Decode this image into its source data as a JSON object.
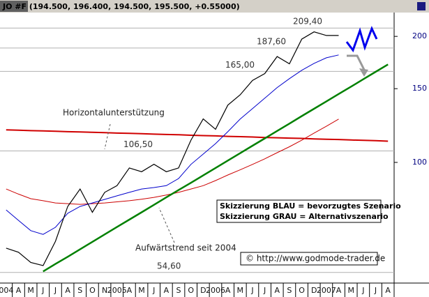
{
  "header": "JO #F (194.500, 196.400, 194.500, 195.500, +0.55000)",
  "chart_data": {
    "type": "line",
    "log_scale": true,
    "categories": [
      "004",
      "A",
      "M",
      "J",
      "J",
      "A",
      "S",
      "O",
      "N",
      "2005",
      "A",
      "M",
      "J",
      "A",
      "S",
      "O",
      "D",
      "2006",
      "A",
      "M",
      "J",
      "J",
      "A",
      "S",
      "O",
      "D",
      "2007",
      "A",
      "M",
      "J",
      "J",
      "A"
    ],
    "ylim": [
      51.5,
      228
    ],
    "yticks": [
      100,
      150,
      200
    ],
    "axis_color": "#000080",
    "series": [
      {
        "color": "#d00000",
        "width": 2,
        "values": [
          119.6,
          119.4,
          119.1,
          118.9,
          118.7,
          118.4,
          118.2,
          118.0,
          117.8,
          117.5,
          117.3,
          117.1,
          116.8,
          116.6,
          116.4,
          116.1,
          115.9,
          115.7,
          115.4,
          115.2,
          115.0,
          114.7,
          114.5,
          114.3,
          114.1,
          113.8,
          113.6,
          113.4,
          113.1,
          112.9,
          112.7,
          112.4
        ]
      },
      {
        "color": "#cc0000",
        "width": 1,
        "values": [
          86.4,
          84,
          81.9,
          81,
          80,
          79.7,
          79.4,
          79.7,
          80,
          80.5,
          81,
          81.7,
          82.5,
          83.6,
          84.8,
          86.4,
          88,
          90.5,
          93.3,
          96,
          98.9,
          102,
          105.5,
          109,
          113,
          117.5,
          122,
          126.9,
          null,
          null,
          null,
          null
        ]
      },
      {
        "color": "#0000cc",
        "width": 1,
        "values": [
          77.0,
          72.7,
          68.7,
          67.3,
          70,
          75.6,
          78.5,
          80,
          81.6,
          83.2,
          84.8,
          86.4,
          87.1,
          88,
          91.5,
          98.9,
          104.7,
          110.9,
          118.4,
          126.9,
          134.4,
          142.4,
          150.9,
          158.5,
          166,
          172.4,
          177.8,
          180.6,
          null,
          null,
          null,
          null
        ]
      },
      {
        "color": "#008000",
        "width": 2.5,
        "values": [
          null,
          null,
          null,
          54.9,
          57.2,
          59.5,
          62.0,
          64.6,
          67.3,
          70.1,
          73.0,
          76.0,
          79.2,
          82.5,
          85.9,
          89.4,
          93.1,
          97.0,
          101.0,
          105.2,
          109.6,
          114.1,
          118.9,
          123.8,
          129.0,
          134.3,
          139.9,
          145.7,
          151.7,
          158.0,
          164.6,
          171.4
        ]
      },
      {
        "color": "#000000",
        "width": 1.2,
        "values": [
          62.4,
          61,
          57.7,
          56.7,
          64.8,
          78.5,
          86.4,
          76,
          84.8,
          88,
          97,
          95,
          99,
          95,
          97,
          113,
          127,
          120,
          137,
          145,
          157,
          163,
          179,
          172,
          197,
          205,
          201,
          201,
          null,
          null,
          null,
          null
        ]
      }
    ],
    "levels": [
      {
        "value": 209.4,
        "label": "209,40"
      },
      {
        "value": 187.6,
        "label": "187,60"
      },
      {
        "value": 165.0,
        "label": "165,00"
      },
      {
        "value": 106.5,
        "label": "106,50"
      },
      {
        "value": 54.6,
        "label": "54,60"
      }
    ],
    "annotations": [
      "Horizontalunterstützung",
      "Aufwärtstrend seit 2004",
      "Skizzierung BLAU = bevorzugtes Szenario",
      "Skizzierung GRAU = Alternativszenario",
      "© http://www.godmode-trader.de"
    ]
  }
}
